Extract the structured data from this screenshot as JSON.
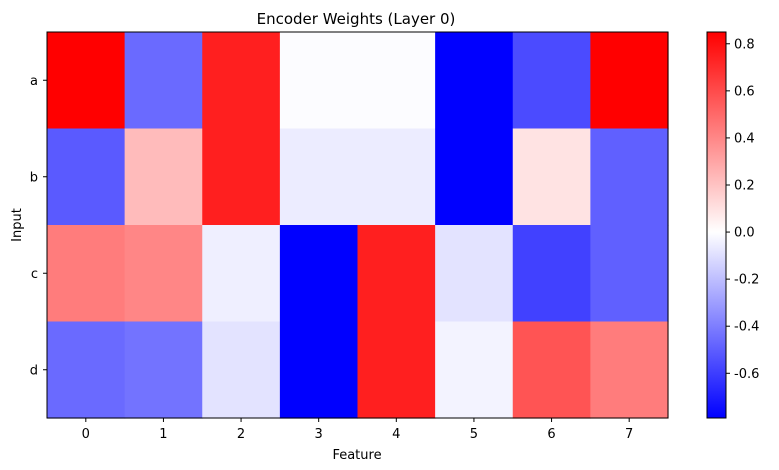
{
  "chart_data": {
    "type": "heatmap",
    "title": "Encoder Weights (Layer 0)",
    "xlabel": "Feature",
    "ylabel": "Input",
    "x_categories": [
      "0",
      "1",
      "2",
      "3",
      "4",
      "5",
      "6",
      "7"
    ],
    "y_categories": [
      "a",
      "b",
      "c",
      "d"
    ],
    "values": [
      [
        0.85,
        -0.45,
        0.75,
        0.02,
        0.02,
        -0.79,
        -0.55,
        0.85
      ],
      [
        -0.5,
        0.25,
        0.75,
        -0.03,
        -0.03,
        -0.79,
        0.12,
        -0.48
      ],
      [
        0.45,
        0.42,
        -0.02,
        -0.79,
        0.75,
        -0.06,
        -0.58,
        -0.48
      ],
      [
        -0.45,
        -0.42,
        -0.06,
        -0.79,
        0.75,
        -0.01,
        0.58,
        0.45
      ]
    ],
    "colormap": "bwr",
    "vmin": -0.79,
    "vmax": 0.85,
    "colorbar_ticks": [
      "0.8",
      "0.6",
      "0.4",
      "0.2",
      "0.0",
      "-0.2",
      "-0.4",
      "-0.6"
    ],
    "colorbar_tick_values": [
      0.8,
      0.6,
      0.4,
      0.2,
      0.0,
      -0.2,
      -0.4,
      -0.6
    ],
    "grid": false,
    "colors": {
      "low": "#0000ff",
      "mid": "#ffffff",
      "high": "#ff0000",
      "axis": "#000000",
      "text": "#000000"
    }
  }
}
